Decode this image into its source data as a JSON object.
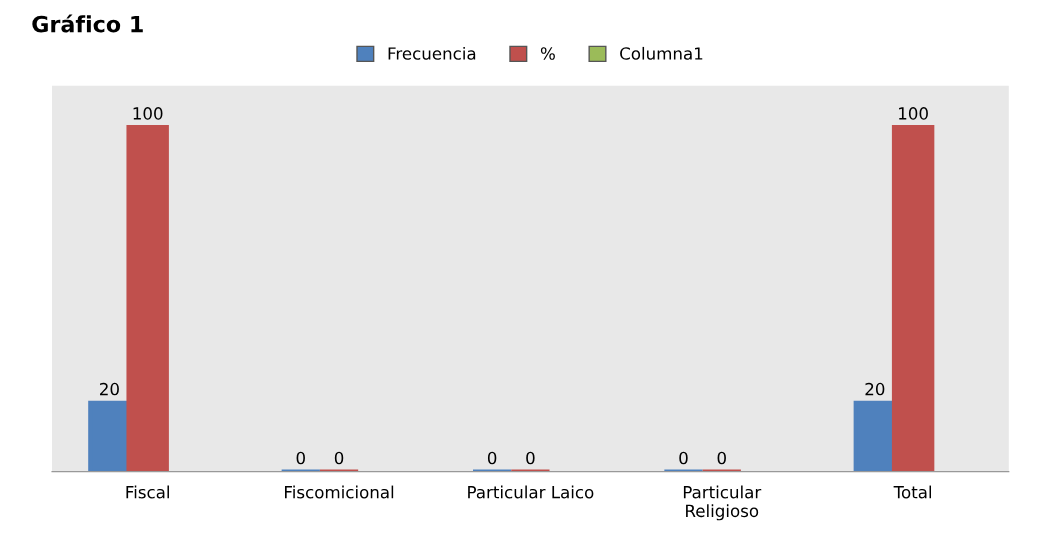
{
  "chart_data": {
    "type": "bar",
    "title": "Gráfico 1",
    "categories": [
      "Fiscal",
      "Fiscomicional",
      "Particular Laico",
      "Particular\nReligioso",
      "Total"
    ],
    "series": [
      {
        "name": "Frecuencia",
        "color": "#4f81bd",
        "values": [
          20,
          0,
          0,
          0,
          20
        ]
      },
      {
        "name": "%",
        "color": "#c0504d",
        "values": [
          100,
          0,
          0,
          0,
          100
        ]
      },
      {
        "name": "Columna1",
        "color": "#9bbb59",
        "values": [
          null,
          null,
          null,
          null,
          null
        ]
      }
    ],
    "data_labels": true,
    "legend": "top",
    "grid": false
  }
}
